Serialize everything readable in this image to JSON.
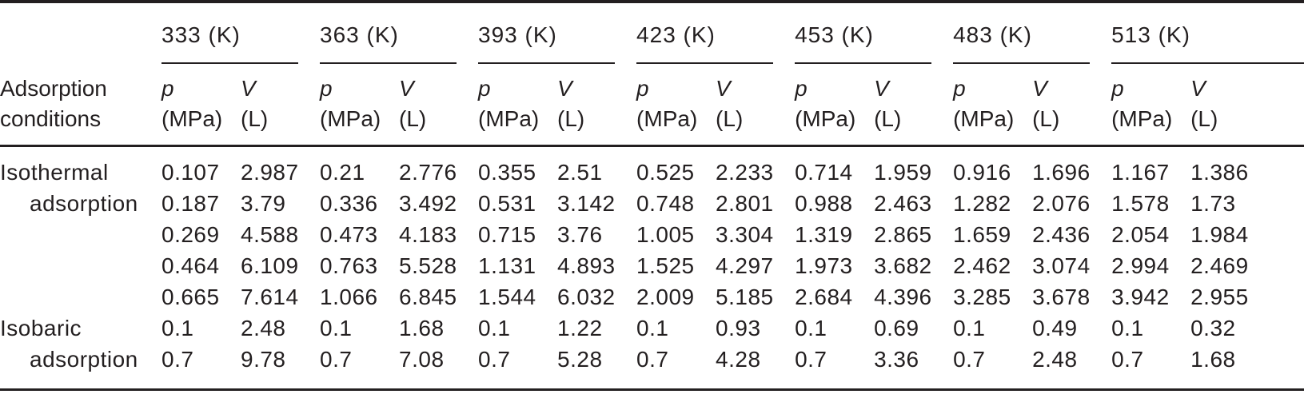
{
  "page": {
    "background_color": "#ffffff",
    "text_color": "#231f20",
    "rule_color": "#231f20"
  },
  "table": {
    "stub_header_lines": [
      "Adsorption",
      "conditions"
    ],
    "temperatures": [
      "333 (K)",
      "363 (K)",
      "393 (K)",
      "423 (K)",
      "453 (K)",
      "483 (K)",
      "513 (K)"
    ],
    "subheader": {
      "pressure_symbol": "p",
      "pressure_unit": "(MPa)",
      "volume_symbol": "V",
      "volume_unit": "(L)"
    },
    "sections": [
      {
        "label_lines": [
          "Isothermal",
          "adsorption"
        ],
        "rows": [
          [
            "0.107",
            "2.987",
            "0.21",
            "2.776",
            "0.355",
            "2.51",
            "0.525",
            "2.233",
            "0.714",
            "1.959",
            "0.916",
            "1.696",
            "1.167",
            "1.386"
          ],
          [
            "0.187",
            "3.79",
            "0.336",
            "3.492",
            "0.531",
            "3.142",
            "0.748",
            "2.801",
            "0.988",
            "2.463",
            "1.282",
            "2.076",
            "1.578",
            "1.73"
          ],
          [
            "0.269",
            "4.588",
            "0.473",
            "4.183",
            "0.715",
            "3.76",
            "1.005",
            "3.304",
            "1.319",
            "2.865",
            "1.659",
            "2.436",
            "2.054",
            "1.984"
          ],
          [
            "0.464",
            "6.109",
            "0.763",
            "5.528",
            "1.131",
            "4.893",
            "1.525",
            "4.297",
            "1.973",
            "3.682",
            "2.462",
            "3.074",
            "2.994",
            "2.469"
          ],
          [
            "0.665",
            "7.614",
            "1.066",
            "6.845",
            "1.544",
            "6.032",
            "2.009",
            "5.185",
            "2.684",
            "4.396",
            "3.285",
            "3.678",
            "3.942",
            "2.955"
          ]
        ]
      },
      {
        "label_lines": [
          "Isobaric",
          "adsorption"
        ],
        "rows": [
          [
            "0.1",
            "2.48",
            "0.1",
            "1.68",
            "0.1",
            "1.22",
            "0.1",
            "0.93",
            "0.1",
            "0.69",
            "0.1",
            "0.49",
            "0.1",
            "0.32"
          ],
          [
            "0.7",
            "9.78",
            "0.7",
            "7.08",
            "0.7",
            "5.28",
            "0.7",
            "4.28",
            "0.7",
            "3.36",
            "0.7",
            "2.48",
            "0.7",
            "1.68"
          ]
        ]
      }
    ]
  }
}
